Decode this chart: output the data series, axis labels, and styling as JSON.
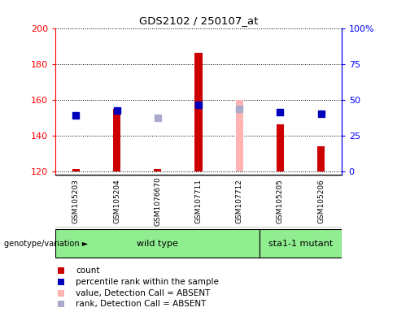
{
  "title": "GDS2102 / 250107_at",
  "samples": [
    "GSM105203",
    "GSM105204",
    "GSM1076670",
    "GSM107711",
    "GSM107712",
    "GSM105205",
    "GSM105206"
  ],
  "bar_values": [
    121,
    155,
    121,
    186,
    null,
    146,
    134
  ],
  "bar_absent_values": [
    null,
    null,
    null,
    null,
    160,
    null,
    null
  ],
  "rank_values": [
    151,
    154,
    null,
    157,
    null,
    153,
    152
  ],
  "rank_absent_values": [
    null,
    null,
    150,
    null,
    155,
    null,
    null
  ],
  "bar_color": "#cc0000",
  "bar_absent_color": "#ffb3b3",
  "rank_color": "#0000bb",
  "rank_absent_color": "#aaaacc",
  "ylim_left": [
    118,
    200
  ],
  "ylim_right": [
    0,
    100
  ],
  "yticks_left": [
    120,
    140,
    160,
    180,
    200
  ],
  "ytick_labels_left": [
    "120",
    "140",
    "160",
    "180",
    "200"
  ],
  "yticks_right_vals": [
    120,
    131.25,
    142.5,
    153.75,
    165,
    176.25,
    187.5,
    198.75
  ],
  "ytick_labels_right": [
    "0",
    "",
    "25",
    "",
    "50",
    "",
    "75",
    ""
  ],
  "yticks_right_display": [
    120,
    140,
    160,
    180
  ],
  "ytick_labels_right_display": [
    "0",
    "25",
    "50",
    "75"
  ],
  "wild_type_count": 5,
  "mutant_count": 2,
  "genotype_label": "genotype/variation",
  "wild_type_label": "wild type",
  "mutant_label": "sta1-1 mutant",
  "legend_items": [
    {
      "label": "count",
      "color": "#cc0000"
    },
    {
      "label": "percentile rank within the sample",
      "color": "#0000bb"
    },
    {
      "label": "value, Detection Call = ABSENT",
      "color": "#ffb3b3"
    },
    {
      "label": "rank, Detection Call = ABSENT",
      "color": "#aaaacc"
    }
  ],
  "background_color": "#ffffff",
  "label_area_color": "#c8c8c8",
  "wild_type_bg": "#90ee90",
  "mutant_bg": "#90ee90",
  "bar_width": 0.18,
  "base_value": 120,
  "rank_marker_size": 6
}
